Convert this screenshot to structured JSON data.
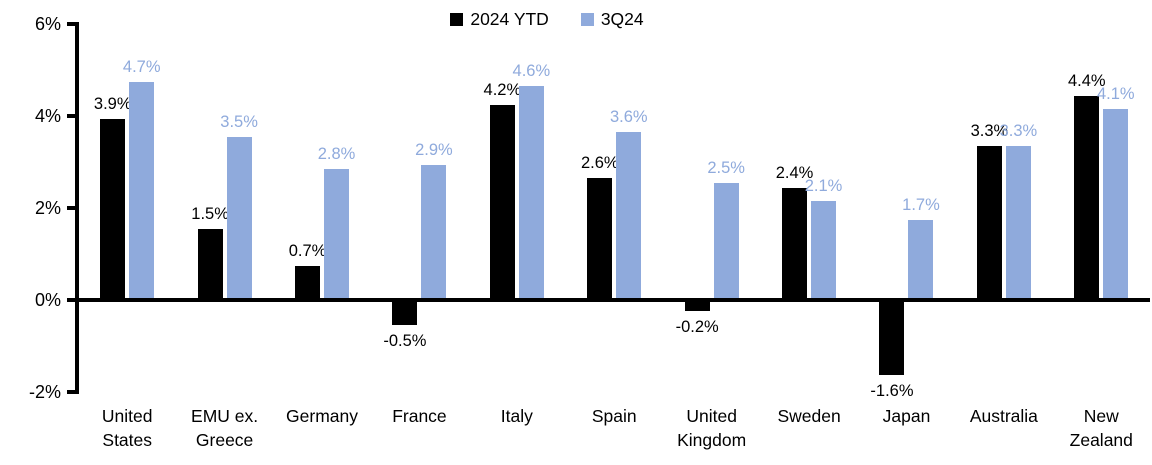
{
  "chart_data": {
    "type": "bar",
    "title": "",
    "xlabel": "",
    "ylabel": "",
    "categories": [
      "United States",
      "EMU ex. Greece",
      "Germany",
      "France",
      "Italy",
      "Spain",
      "United Kingdom",
      "Sweden",
      "Japan",
      "Australia",
      "New Zealand"
    ],
    "series": [
      {
        "name": "2024 YTD",
        "color": "#000000",
        "values": [
          3.9,
          1.5,
          0.7,
          -0.5,
          4.2,
          2.6,
          -0.2,
          2.4,
          -1.6,
          3.3,
          4.4
        ],
        "value_labels": [
          "3.9%",
          "1.5%",
          "0.7%",
          "-0.5%",
          "4.2%",
          "2.6%",
          "-0.2%",
          "2.4%",
          "-1.6%",
          "3.3%",
          "4.4%"
        ]
      },
      {
        "name": "3Q24",
        "color": "#8FAADC",
        "values": [
          4.7,
          3.5,
          2.8,
          2.9,
          4.6,
          3.6,
          2.5,
          2.1,
          1.7,
          3.3,
          4.1
        ],
        "value_labels": [
          "4.7%",
          "3.5%",
          "2.8%",
          "2.9%",
          "4.6%",
          "3.6%",
          "2.5%",
          "2.1%",
          "1.7%",
          "3.3%",
          "4.1%"
        ]
      }
    ],
    "ylim": [
      -2,
      6
    ],
    "yticks": [
      {
        "value": 6,
        "label": "6%"
      },
      {
        "value": 4,
        "label": "4%"
      },
      {
        "value": 2,
        "label": "2%"
      },
      {
        "value": 0,
        "label": "0%"
      },
      {
        "value": -2,
        "label": "-2%"
      }
    ],
    "grid": false,
    "legend_position": "top-center",
    "value_suffix": "%"
  }
}
